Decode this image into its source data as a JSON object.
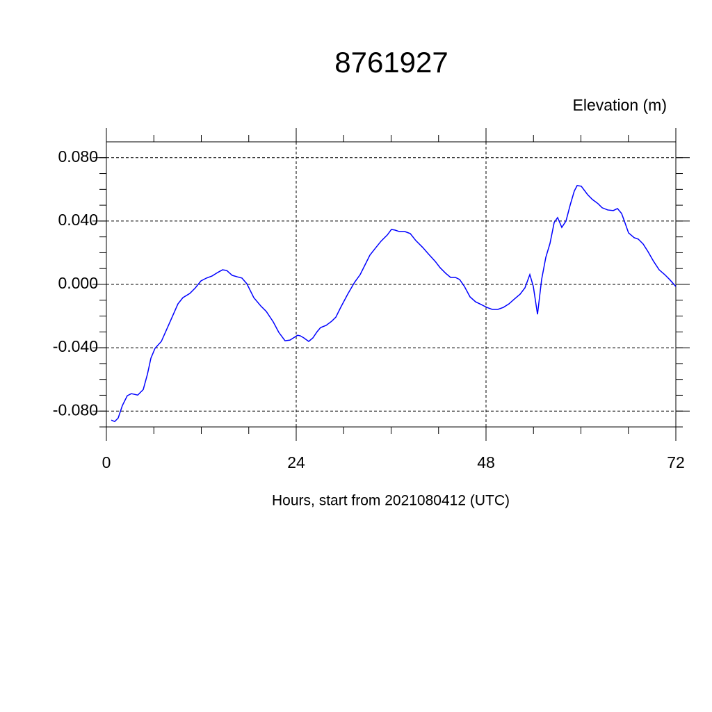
{
  "chart_data": {
    "type": "line",
    "title": "8761927",
    "ylabel": "Elevation (m)",
    "xlabel": "Hours, start from 2021080412 (UTC)",
    "x": [
      0.62,
      1.05,
      1.49,
      2.02,
      2.64,
      3.16,
      3.96,
      4.66,
      5.19,
      5.63,
      6.15,
      6.95,
      7.65,
      8.35,
      9.05,
      9.67,
      10.55,
      11.25,
      11.96,
      12.66,
      13.36,
      14.07,
      14.68,
      15.21,
      15.91,
      16.53,
      17.14,
      17.76,
      18.64,
      19.52,
      20.22,
      21.1,
      21.8,
      22.59,
      23.21,
      24.18,
      24.53,
      24.97,
      25.58,
      26.11,
      26.64,
      27.08,
      27.78,
      28.48,
      29.01,
      29.63,
      30.51,
      31.38,
      32.09,
      32.7,
      33.32,
      34.02,
      34.73,
      35.52,
      36.04,
      36.48,
      37.01,
      37.71,
      38.42,
      39.12,
      40.0,
      40.7,
      41.58,
      42.2,
      42.9,
      43.52,
      44.13,
      44.66,
      45.27,
      45.98,
      46.68,
      47.38,
      48.09,
      48.79,
      49.49,
      50.2,
      50.9,
      51.6,
      52.31,
      52.92,
      53.54,
      53.98,
      54.51,
      55.03,
      55.56,
      56.09,
      56.62,
      57.05,
      57.58,
      58.11,
      58.64,
      59.16,
      59.52,
      60.04,
      60.84,
      61.45,
      62.15,
      62.68,
      63.38,
      64.09,
      64.62,
      65.14,
      65.49,
      66.02,
      66.73,
      67.25,
      67.87,
      68.48,
      69.19,
      69.89,
      70.59,
      71.21,
      72.0
    ],
    "series": [
      {
        "name": "8761927",
        "color": "#0000ff",
        "values": [
          -0.0857,
          -0.0866,
          -0.0844,
          -0.0765,
          -0.0703,
          -0.069,
          -0.0699,
          -0.0664,
          -0.0567,
          -0.0466,
          -0.0404,
          -0.036,
          -0.0281,
          -0.0202,
          -0.0123,
          -0.0084,
          -0.0057,
          -0.0022,
          0.0022,
          0.004,
          0.0053,
          0.0075,
          0.0092,
          0.0088,
          0.0057,
          0.0048,
          0.004,
          0.0004,
          -0.0084,
          -0.0136,
          -0.0171,
          -0.0237,
          -0.0303,
          -0.0356,
          -0.0352,
          -0.0321,
          -0.0325,
          -0.0338,
          -0.036,
          -0.0338,
          -0.0299,
          -0.0273,
          -0.0259,
          -0.0233,
          -0.0207,
          -0.0145,
          -0.0062,
          0.0013,
          0.0062,
          0.0123,
          0.0185,
          0.0229,
          0.0273,
          0.0312,
          0.0347,
          0.0343,
          0.0334,
          0.0334,
          0.0321,
          0.0277,
          0.0233,
          0.0193,
          0.0145,
          0.0105,
          0.007,
          0.0044,
          0.0044,
          0.0031,
          -0.0013,
          -0.0079,
          -0.011,
          -0.0127,
          -0.0145,
          -0.0158,
          -0.0158,
          -0.0145,
          -0.0123,
          -0.0092,
          -0.0062,
          -0.0022,
          0.0062,
          -0.0013,
          -0.0189,
          0.0031,
          0.0171,
          0.0259,
          0.0391,
          0.0422,
          0.036,
          0.04,
          0.0501,
          0.0589,
          0.0624,
          0.062,
          0.0567,
          0.0536,
          0.051,
          0.0484,
          0.047,
          0.0466,
          0.0479,
          0.0448,
          0.04,
          0.0325,
          0.0295,
          0.0286,
          0.0255,
          0.0207,
          0.0145,
          0.0092,
          0.0062,
          0.0031,
          -0.0013
        ]
      }
    ],
    "xlim": [
      0,
      72
    ],
    "xticks": [
      0,
      24,
      48,
      72
    ],
    "ylim": [
      -0.09,
      0.09
    ],
    "yticks": [
      {
        "value": -0.08,
        "label": "-0.080"
      },
      {
        "value": -0.04,
        "label": "-0.040"
      },
      {
        "value": 0,
        "label": "0.000"
      },
      {
        "value": 0.04,
        "label": "0.040"
      },
      {
        "value": 0.08,
        "label": "0.080"
      }
    ],
    "grid": true
  }
}
